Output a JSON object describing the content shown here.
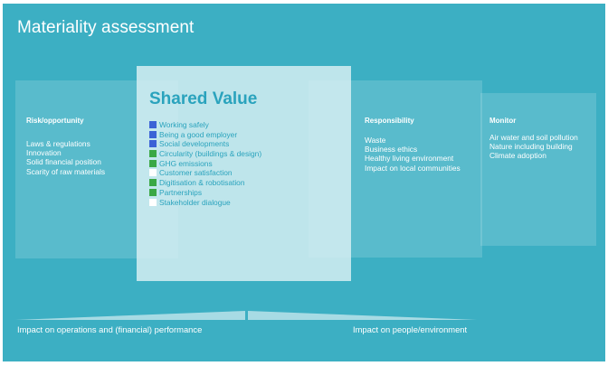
{
  "title": "Materiality assessment",
  "shared_value": {
    "heading": "Shared Value",
    "items": [
      {
        "label": "Working safely",
        "color": "#3b62d6"
      },
      {
        "label": "Being a good employer",
        "color": "#3b62d6"
      },
      {
        "label": "Social developments",
        "color": "#3b62d6"
      },
      {
        "label": "Circularity (buildings & design)",
        "color": "#3ba845"
      },
      {
        "label": "GHG emissions",
        "color": "#3ba845"
      },
      {
        "label": "Customer satisfaction",
        "color": "#ffffff"
      },
      {
        "label": "Digitisation & robotisation",
        "color": "#3ba845"
      },
      {
        "label": "Partnerships",
        "color": "#3ba845"
      },
      {
        "label": "Stakeholder dialogue",
        "color": "#ffffff"
      }
    ]
  },
  "risk": {
    "heading": "Risk/opportunity",
    "items": [
      "Laws & regulations",
      "Innovation",
      "Solid financial position",
      "Scarity of raw materials"
    ]
  },
  "responsibility": {
    "heading": "Responsibility",
    "items": [
      "Waste",
      "Business ethics",
      "Healthy living  environment",
      "Impact on local communities"
    ]
  },
  "monitor": {
    "heading": "Monitor",
    "items": [
      "Air water and soil pollution",
      "Nature including building",
      "Climate adoption"
    ]
  },
  "bottom": {
    "left": "Impact on operations and (financial) performance",
    "right": "Impact on people/environment"
  },
  "colors": {
    "background": "#3cafc3",
    "shared_text": "#2aa3bd"
  }
}
